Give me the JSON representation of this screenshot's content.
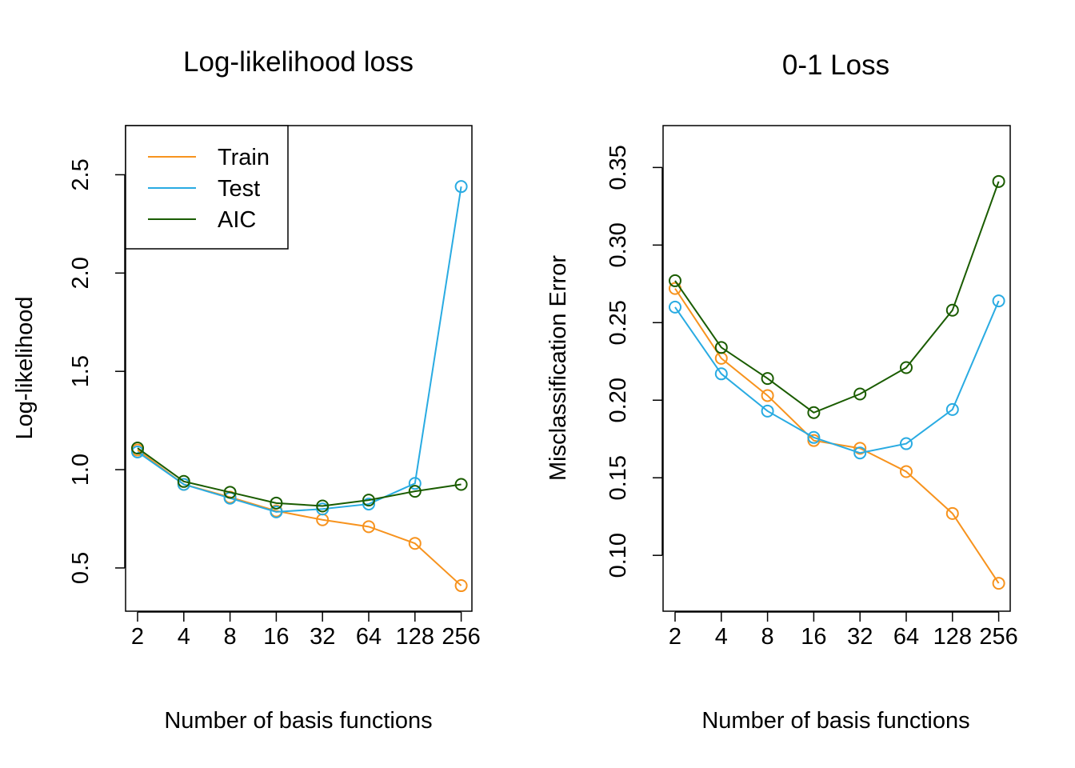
{
  "colors": {
    "train": "#F7931E",
    "test": "#29ABE2",
    "aic": "#1A5C00"
  },
  "chart_data": [
    {
      "type": "line",
      "title": "Log-likelihood loss",
      "xlabel": "Number of basis functions",
      "ylabel": "Log-likelihood",
      "categories": [
        "2",
        "4",
        "8",
        "16",
        "32",
        "64",
        "128",
        "256"
      ],
      "ylim": [
        0.28,
        2.75
      ],
      "yticks": [
        "0.5",
        "1.0",
        "1.5",
        "2.0",
        "2.5"
      ],
      "grid": false,
      "legend": "top-left",
      "series": [
        {
          "name": "Train",
          "color": "#F7931E",
          "values": [
            1.1,
            0.925,
            0.86,
            0.79,
            0.745,
            0.71,
            0.625,
            0.41
          ]
        },
        {
          "name": "Test",
          "color": "#29ABE2",
          "values": [
            1.09,
            0.925,
            0.855,
            0.785,
            0.8,
            0.825,
            0.93,
            2.44
          ]
        },
        {
          "name": "AIC",
          "color": "#1A5C00",
          "values": [
            1.11,
            0.94,
            0.885,
            0.83,
            0.815,
            0.845,
            0.89,
            0.925
          ]
        }
      ]
    },
    {
      "type": "line",
      "title": "0-1 Loss",
      "xlabel": "Number of basis functions",
      "ylabel": "Misclassification Error",
      "categories": [
        "2",
        "4",
        "8",
        "16",
        "32",
        "64",
        "128",
        "256"
      ],
      "ylim": [
        0.064,
        0.377
      ],
      "yticks": [
        "0.10",
        "0.15",
        "0.20",
        "0.25",
        "0.30",
        "0.35"
      ],
      "grid": false,
      "series": [
        {
          "name": "Train",
          "color": "#F7931E",
          "values": [
            0.272,
            0.227,
            0.203,
            0.174,
            0.169,
            0.154,
            0.127,
            0.082
          ]
        },
        {
          "name": "Test",
          "color": "#29ABE2",
          "values": [
            0.26,
            0.217,
            0.193,
            0.176,
            0.166,
            0.172,
            0.194,
            0.264
          ]
        },
        {
          "name": "AIC",
          "color": "#1A5C00",
          "values": [
            0.277,
            0.234,
            0.214,
            0.192,
            0.204,
            0.221,
            0.258,
            0.341
          ]
        }
      ]
    }
  ]
}
